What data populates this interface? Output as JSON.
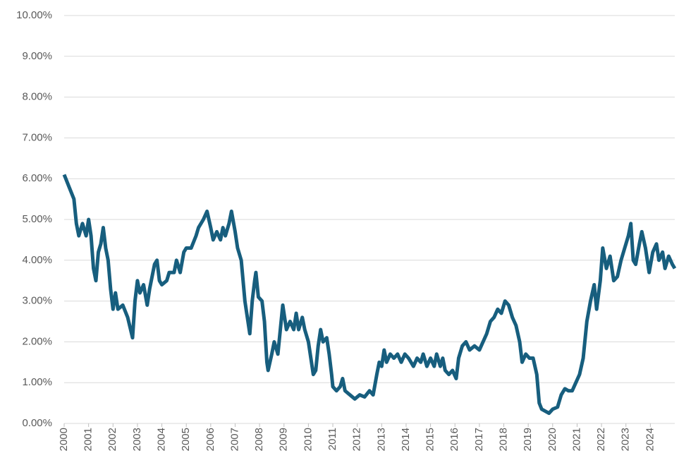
{
  "chart_data": {
    "type": "line",
    "x": [
      2000.0,
      2000.2,
      2000.4,
      2000.5,
      2000.6,
      2000.75,
      2000.9,
      2001.0,
      2001.1,
      2001.2,
      2001.3,
      2001.4,
      2001.5,
      2001.6,
      2001.7,
      2001.8,
      2001.9,
      2002.0,
      2002.1,
      2002.2,
      2002.4,
      2002.6,
      2002.8,
      2002.9,
      2003.0,
      2003.1,
      2003.25,
      2003.4,
      2003.5,
      2003.7,
      2003.8,
      2003.9,
      2004.0,
      2004.2,
      2004.3,
      2004.5,
      2004.6,
      2004.75,
      2004.9,
      2005.0,
      2005.2,
      2005.4,
      2005.5,
      2005.7,
      2005.85,
      2006.0,
      2006.1,
      2006.25,
      2006.4,
      2006.5,
      2006.6,
      2006.75,
      2006.85,
      2007.0,
      2007.1,
      2007.25,
      2007.4,
      2007.5,
      2007.6,
      2007.7,
      2007.8,
      2007.85,
      2007.95,
      2008.1,
      2008.2,
      2008.3,
      2008.35,
      2008.5,
      2008.6,
      2008.75,
      2008.85,
      2008.95,
      2009.1,
      2009.25,
      2009.4,
      2009.5,
      2009.6,
      2009.75,
      2009.85,
      2010.0,
      2010.1,
      2010.2,
      2010.3,
      2010.4,
      2010.5,
      2010.6,
      2010.75,
      2010.85,
      2010.95,
      2011.0,
      2011.15,
      2011.3,
      2011.4,
      2011.5,
      2011.7,
      2011.9,
      2012.1,
      2012.3,
      2012.5,
      2012.65,
      2012.8,
      2012.9,
      2013.0,
      2013.1,
      2013.2,
      2013.35,
      2013.5,
      2013.65,
      2013.8,
      2013.95,
      2014.1,
      2014.3,
      2014.45,
      2014.6,
      2014.7,
      2014.85,
      2015.0,
      2015.15,
      2015.25,
      2015.4,
      2015.5,
      2015.6,
      2015.75,
      2015.9,
      2016.05,
      2016.15,
      2016.3,
      2016.45,
      2016.6,
      2016.8,
      2017.0,
      2017.15,
      2017.3,
      2017.45,
      2017.6,
      2017.75,
      2017.9,
      2018.05,
      2018.2,
      2018.35,
      2018.5,
      2018.65,
      2018.75,
      2018.9,
      2019.05,
      2019.2,
      2019.35,
      2019.45,
      2019.55,
      2019.7,
      2019.85,
      2020.0,
      2020.2,
      2020.35,
      2020.5,
      2020.65,
      2020.8,
      2020.95,
      2021.1,
      2021.25,
      2021.4,
      2021.55,
      2021.7,
      2021.8,
      2021.95,
      2022.05,
      2022.2,
      2022.35,
      2022.5,
      2022.65,
      2022.8,
      2022.95,
      2023.1,
      2023.2,
      2023.3,
      2023.4,
      2023.55,
      2023.65,
      2023.8,
      2023.95,
      2024.1,
      2024.25,
      2024.35,
      2024.5,
      2024.6,
      2024.75,
      2024.9,
      2025.0
    ],
    "series": [
      {
        "color": "#175e7e",
        "values": [
          6.1,
          5.8,
          5.5,
          4.9,
          4.6,
          4.9,
          4.6,
          5.0,
          4.6,
          3.8,
          3.5,
          4.2,
          4.4,
          4.8,
          4.3,
          4.0,
          3.3,
          2.8,
          3.2,
          2.8,
          2.9,
          2.6,
          2.1,
          3.0,
          3.5,
          3.2,
          3.4,
          2.9,
          3.3,
          3.9,
          4.0,
          3.5,
          3.4,
          3.5,
          3.7,
          3.7,
          4.0,
          3.7,
          4.2,
          4.3,
          4.3,
          4.6,
          4.8,
          5.0,
          5.2,
          4.8,
          4.5,
          4.7,
          4.5,
          4.8,
          4.6,
          4.9,
          5.2,
          4.7,
          4.3,
          4.0,
          3.0,
          2.6,
          2.2,
          3.0,
          3.5,
          3.7,
          3.1,
          3.0,
          2.5,
          1.5,
          1.3,
          1.7,
          2.0,
          1.7,
          2.3,
          2.9,
          2.3,
          2.5,
          2.3,
          2.7,
          2.3,
          2.6,
          2.3,
          2.0,
          1.6,
          1.2,
          1.3,
          1.9,
          2.3,
          2.0,
          2.1,
          1.7,
          1.2,
          0.9,
          0.8,
          0.9,
          1.1,
          0.8,
          0.7,
          0.6,
          0.7,
          0.65,
          0.8,
          0.7,
          1.2,
          1.5,
          1.4,
          1.8,
          1.5,
          1.7,
          1.6,
          1.7,
          1.5,
          1.7,
          1.6,
          1.4,
          1.6,
          1.5,
          1.7,
          1.4,
          1.6,
          1.4,
          1.7,
          1.4,
          1.6,
          1.3,
          1.2,
          1.3,
          1.1,
          1.6,
          1.9,
          2.0,
          1.8,
          1.9,
          1.8,
          2.0,
          2.2,
          2.5,
          2.6,
          2.8,
          2.7,
          3.0,
          2.9,
          2.6,
          2.4,
          2.0,
          1.5,
          1.7,
          1.6,
          1.6,
          1.2,
          0.5,
          0.35,
          0.3,
          0.25,
          0.35,
          0.4,
          0.7,
          0.85,
          0.8,
          0.8,
          1.0,
          1.2,
          1.6,
          2.5,
          3.0,
          3.4,
          2.8,
          3.5,
          4.3,
          3.8,
          4.1,
          3.5,
          3.6,
          4.0,
          4.3,
          4.6,
          4.9,
          4.0,
          3.9,
          4.4,
          4.7,
          4.3,
          3.7,
          4.2,
          4.4,
          4.0,
          4.2,
          3.8,
          4.1,
          3.9,
          3.8
        ]
      }
    ],
    "xlim": [
      2000,
      2025
    ],
    "xticks": [
      2000,
      2001,
      2002,
      2003,
      2004,
      2005,
      2006,
      2007,
      2008,
      2009,
      2010,
      2011,
      2012,
      2013,
      2014,
      2015,
      2016,
      2017,
      2018,
      2019,
      2020,
      2021,
      2022,
      2023,
      2024
    ],
    "ylim": [
      0,
      10
    ],
    "yticks": [
      {
        "value": 0,
        "label": "0.00%"
      },
      {
        "value": 1,
        "label": "1.00%"
      },
      {
        "value": 2,
        "label": "2.00%"
      },
      {
        "value": 3,
        "label": "3.00%"
      },
      {
        "value": 4,
        "label": "4.00%"
      },
      {
        "value": 5,
        "label": "5.00%"
      },
      {
        "value": 6,
        "label": "6.00%"
      },
      {
        "value": 7,
        "label": "7.00%"
      },
      {
        "value": 8,
        "label": "8.00%"
      },
      {
        "value": 9,
        "label": "9.00%"
      },
      {
        "value": 10,
        "label": "10.00%"
      }
    ],
    "grid": true
  }
}
